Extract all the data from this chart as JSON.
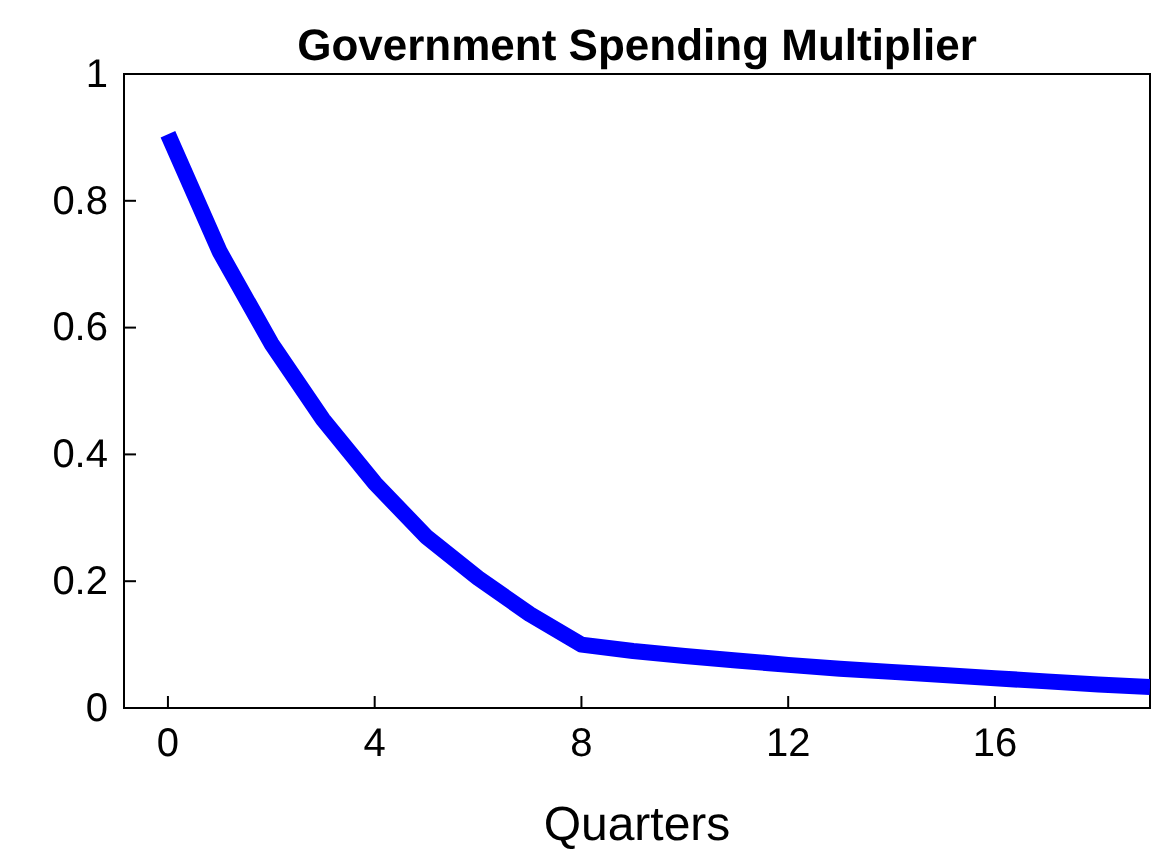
{
  "chart_data": {
    "type": "line",
    "title": "Government Spending Multiplier",
    "xlabel": "Quarters",
    "x": [
      0,
      1,
      2,
      3,
      4,
      5,
      6,
      7,
      8,
      9,
      10,
      11,
      12,
      13,
      14,
      15,
      16,
      17,
      18,
      19
    ],
    "series": [
      {
        "color": "#0000ff",
        "values": [
          0.905,
          0.72,
          0.575,
          0.455,
          0.355,
          0.27,
          0.205,
          0.148,
          0.1,
          0.09,
          0.082,
          0.075,
          0.068,
          0.062,
          0.057,
          0.052,
          0.047,
          0.042,
          0.037,
          0.033
        ]
      }
    ],
    "xlim": [
      -0.85,
      19
    ],
    "ylim": [
      0,
      1
    ],
    "xticks": [
      0,
      4,
      8,
      12,
      16
    ],
    "yticks": [
      0,
      0.2,
      0.4,
      0.6,
      0.8,
      1
    ],
    "grid": false,
    "marker": "none",
    "line_style": "solid"
  }
}
